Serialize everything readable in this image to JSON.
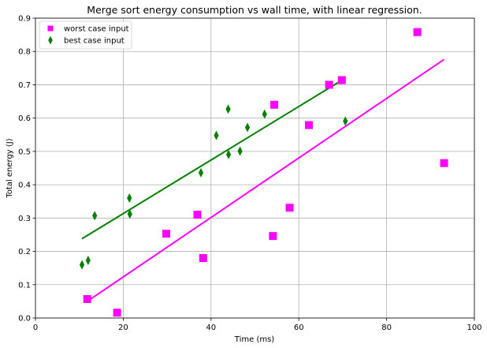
{
  "chart_data": {
    "type": "scatter",
    "title": "Merge sort energy consumption vs wall time, with linear regression.",
    "xlabel": "Time (ms)",
    "ylabel": "Total energy (J)",
    "xlim": [
      0,
      100
    ],
    "ylim": [
      0,
      0.9
    ],
    "x_ticks": [
      0,
      20,
      40,
      60,
      80,
      100
    ],
    "y_ticks": [
      0.0,
      0.1,
      0.2,
      0.3,
      0.4,
      0.5,
      0.6,
      0.7,
      0.8,
      0.9
    ],
    "x_tick_labels": [
      "0",
      "20",
      "40",
      "60",
      "80",
      "100"
    ],
    "y_tick_labels": [
      "0.0",
      "0.1",
      "0.2",
      "0.3",
      "0.4",
      "0.5",
      "0.6",
      "0.7",
      "0.8",
      "0.9"
    ],
    "grid": true,
    "legend_position": "top-left",
    "series": [
      {
        "name": "worst case input",
        "marker": "square",
        "color": "#ff00ff",
        "points": [
          [
            11.8,
            0.057
          ],
          [
            18.6,
            0.016
          ],
          [
            29.8,
            0.253
          ],
          [
            36.9,
            0.31
          ],
          [
            38.2,
            0.18
          ],
          [
            54.1,
            0.246
          ],
          [
            54.4,
            0.64
          ],
          [
            57.9,
            0.331
          ],
          [
            62.3,
            0.579
          ],
          [
            66.9,
            0.7
          ],
          [
            69.8,
            0.714
          ],
          [
            87.0,
            0.858
          ],
          [
            93.1,
            0.465
          ]
        ],
        "regression": {
          "x": [
            11.8,
            93.1
          ],
          "y": [
            0.05,
            0.776
          ]
        }
      },
      {
        "name": "best case input",
        "marker": "diamond",
        "color": "#008000",
        "points": [
          [
            10.6,
            0.16
          ],
          [
            12.0,
            0.173
          ],
          [
            13.5,
            0.307
          ],
          [
            21.4,
            0.36
          ],
          [
            21.5,
            0.312
          ],
          [
            37.7,
            0.436
          ],
          [
            41.2,
            0.548
          ],
          [
            43.9,
            0.627
          ],
          [
            44.0,
            0.491
          ],
          [
            46.6,
            0.501
          ],
          [
            48.3,
            0.572
          ],
          [
            52.2,
            0.612
          ],
          [
            70.6,
            0.591
          ]
        ],
        "regression": {
          "x": [
            10.6,
            70.6
          ],
          "y": [
            0.238,
            0.72
          ]
        }
      }
    ]
  }
}
